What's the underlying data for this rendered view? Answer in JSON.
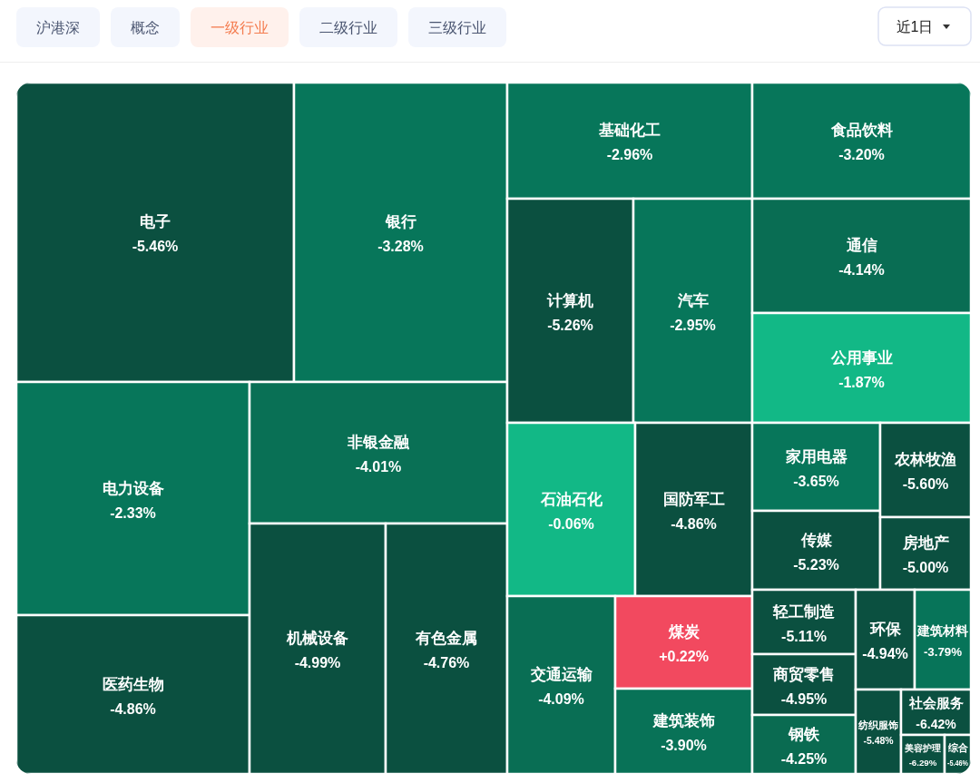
{
  "chart_data": {
    "type": "other",
    "categories": [
      "电子",
      "银行",
      "电力设备",
      "医药生物",
      "非银金融",
      "机械设备",
      "有色金属",
      "基础化工",
      "计算机",
      "汽车",
      "石油石化",
      "国防军工",
      "交通运输",
      "煤炭",
      "建筑装饰",
      "食品饮料",
      "通信",
      "公用事业",
      "家用电器",
      "传媒",
      "农林牧渔",
      "房地产",
      "轻工制造",
      "商贸零售",
      "钢铁",
      "环保",
      "建筑材料",
      "纺织服饰",
      "社会服务",
      "美容护理",
      "综合"
    ],
    "values": [
      -5.46,
      -3.28,
      -2.33,
      -4.86,
      -4.01,
      -4.99,
      -4.76,
      -2.96,
      -5.26,
      -2.95,
      -0.06,
      -4.86,
      -4.09,
      0.22,
      -3.9,
      -3.2,
      -4.14,
      -1.87,
      -3.65,
      -5.23,
      -5.6,
      -5.0,
      -5.11,
      -4.95,
      -4.25,
      -4.94,
      -3.79,
      -5.48,
      -6.42,
      -6.29,
      -5.46
    ],
    "value_labels": [
      "-5.46%",
      "-3.28%",
      "-2.33%",
      "-4.86%",
      "-4.01%",
      "-4.99%",
      "-4.76%",
      "-2.96%",
      "-5.26%",
      "-2.95%",
      "-0.06%",
      "-4.86%",
      "-4.09%",
      "+0.22%",
      "-3.90%",
      "-3.20%",
      "-4.14%",
      "-1.87%",
      "-3.65%",
      "-5.23%",
      "-5.60%",
      "-5.00%",
      "-5.11%",
      "-4.95%",
      "-4.25%",
      "-4.94%",
      "-3.79%",
      "-5.48%",
      "-6.42%",
      "-6.29%",
      "-5.46%"
    ],
    "annotations": [
      "沪港深",
      "概念",
      "一级行业",
      "二级行业",
      "三级行业",
      "近1日"
    ]
  }
}
